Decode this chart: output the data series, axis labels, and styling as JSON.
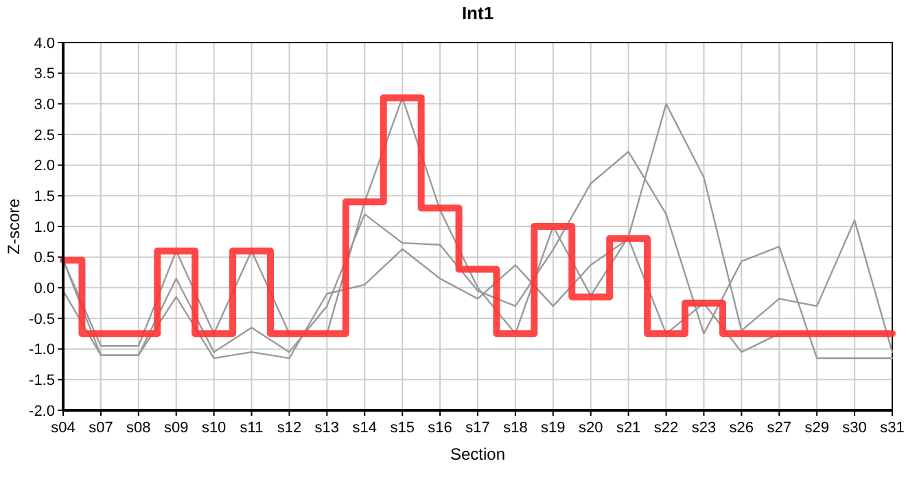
{
  "chart_data": {
    "type": "line",
    "title": "Int1",
    "xlabel": "Section",
    "ylabel": "Z-score",
    "categories": [
      "s04",
      "s07",
      "s08",
      "s09",
      "s10",
      "s11",
      "s12",
      "s13",
      "s14",
      "s15",
      "s16",
      "s17",
      "s18",
      "s19",
      "s20",
      "s21",
      "s22",
      "s23",
      "s26",
      "s27",
      "s29",
      "s30",
      "s31"
    ],
    "series": [
      {
        "color": "#999999",
        "values": [
          0.45,
          -0.95,
          -0.95,
          0.6,
          -0.75,
          0.6,
          -0.75,
          -0.75,
          1.4,
          3.1,
          1.27,
          0.0,
          -0.75,
          1.0,
          -0.13,
          0.83,
          3.0,
          1.8,
          -0.7,
          -0.18,
          -0.3,
          1.1,
          -1.05
        ]
      },
      {
        "color": "#999999",
        "values": [
          0.45,
          -1.1,
          -1.1,
          0.15,
          -1.05,
          -0.65,
          -1.05,
          -0.3,
          1.2,
          0.73,
          0.7,
          -0.05,
          -0.3,
          0.62,
          1.7,
          2.22,
          1.2,
          -0.75,
          0.43,
          0.67,
          -1.15,
          -1.15,
          -1.15
        ]
      },
      {
        "color": "#999999",
        "values": [
          -0.05,
          -1.1,
          -1.1,
          -0.15,
          -1.15,
          -1.05,
          -1.15,
          -0.1,
          0.05,
          0.63,
          0.15,
          -0.18,
          0.37,
          -0.3,
          0.37,
          0.8,
          -0.75,
          -0.25,
          -1.05,
          -0.75,
          -0.75,
          -0.75,
          -0.75
        ]
      },
      {
        "type": "step",
        "color": "#ff3333",
        "values": [
          0.45,
          -0.75,
          -0.75,
          0.6,
          -0.75,
          0.6,
          -0.75,
          -0.75,
          1.4,
          3.1,
          1.3,
          0.3,
          -0.75,
          1.0,
          -0.15,
          0.8,
          -0.75,
          -0.25,
          -0.75,
          -0.75,
          -0.75,
          -0.75,
          -0.75
        ]
      }
    ],
    "ylim": [
      -2,
      4
    ],
    "yticks": [
      {
        "value": -2,
        "label": "-2.0"
      },
      {
        "value": -1.5,
        "label": "-1.5"
      },
      {
        "value": -1,
        "label": "-1.0"
      },
      {
        "value": -0.5,
        "label": "-0.5"
      },
      {
        "value": 0,
        "label": "0.0"
      },
      {
        "value": 0.5,
        "label": "0.5"
      },
      {
        "value": 1,
        "label": "1.0"
      },
      {
        "value": 1.5,
        "label": "1.5"
      },
      {
        "value": 2,
        "label": "2.0"
      },
      {
        "value": 2.5,
        "label": "2.5"
      },
      {
        "value": 3,
        "label": "3.0"
      },
      {
        "value": 3.5,
        "label": "3.5"
      },
      {
        "value": 4,
        "label": "4.0"
      }
    ],
    "grid": true,
    "marker": "none",
    "line_style": "solid"
  }
}
